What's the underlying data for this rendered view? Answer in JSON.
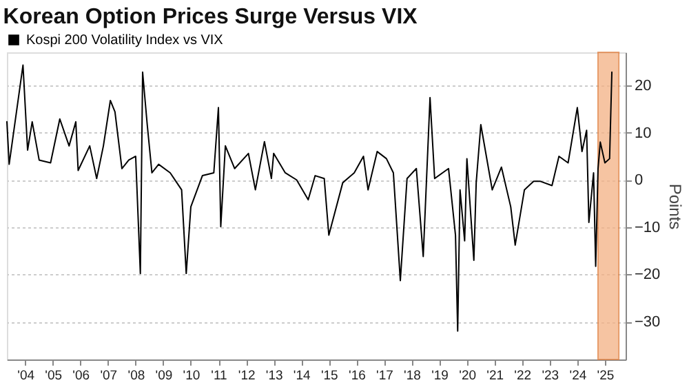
{
  "chart_data": {
    "type": "line",
    "title": "Korean Option Prices Surge Versus VIX",
    "ylabel": "Points",
    "legend": "top left",
    "grid": "y",
    "x": [
      "2003-11",
      "2003-12",
      "2004-06",
      "2004-08",
      "2004-10",
      "2005-01",
      "2005-06",
      "2005-10",
      "2006-02",
      "2006-05",
      "2006-06",
      "2006-11",
      "2007-02",
      "2007-05",
      "2007-08",
      "2007-10",
      "2008-01",
      "2008-04",
      "2008-07",
      "2008-09",
      "2008-10",
      "2008-12",
      "2009-02",
      "2009-05",
      "2009-10",
      "2010-03",
      "2010-05",
      "2010-07",
      "2010-12",
      "2011-05",
      "2011-07",
      "2011-08",
      "2011-10",
      "2012-02",
      "2012-08",
      "2012-11",
      "2013-03",
      "2013-06",
      "2013-07",
      "2013-12",
      "2014-05",
      "2014-10",
      "2015-01",
      "2015-05",
      "2015-07",
      "2016-01",
      "2016-06",
      "2016-10",
      "2016-12",
      "2017-04",
      "2017-08",
      "2017-11",
      "2018-02",
      "2018-05",
      "2018-09",
      "2018-12",
      "2019-03",
      "2019-05",
      "2019-11",
      "2020-02",
      "2020-03",
      "2020-04",
      "2020-06",
      "2020-07",
      "2020-10",
      "2020-11",
      "2021-01",
      "2021-03",
      "2021-06",
      "2021-10",
      "2022-02",
      "2022-04",
      "2022-08",
      "2022-12",
      "2023-03",
      "2023-08",
      "2023-11",
      "2024-03",
      "2024-07",
      "2024-09",
      "2024-11",
      "2024-12",
      "2025-02",
      "2025-03",
      "2025-04",
      "2025-05",
      "2025-07",
      "2025-09",
      "2025-10"
    ],
    "series": [
      {
        "name": "Kospi 200 Volatility Index vs VIX",
        "color": "#000000",
        "values": [
          12.3,
          3.3,
          24.3,
          6.3,
          12.3,
          4.2,
          3.6,
          12.9,
          7.2,
          12.3,
          2,
          7.2,
          0.3,
          7.2,
          16.8,
          14.4,
          2.4,
          4.2,
          5,
          -19.8,
          22.8,
          11.7,
          1.5,
          3.3,
          1.5,
          -2.1,
          -19.8,
          -5.7,
          0.9,
          1.5,
          15.3,
          -9.9,
          7.2,
          2.4,
          5.6,
          -2.1,
          8.1,
          0.3,
          5.6,
          1.5,
          0,
          -4.2,
          0.9,
          0.3,
          -11.7,
          -0.6,
          1.5,
          5,
          -2.1,
          6,
          4.5,
          1.5,
          -21.3,
          0.3,
          2.4,
          -16.2,
          17.4,
          0.3,
          2.4,
          -11.7,
          -32,
          -2.1,
          -12.9,
          4.5,
          -17,
          -0.6,
          11.7,
          6.3,
          -2.1,
          2.7,
          -5.7,
          -13.8,
          -2.1,
          -0.3,
          -0.3,
          -1.2,
          5,
          3.6,
          15.3,
          6,
          10.5,
          -9,
          1.5,
          -18.3,
          2.4,
          8,
          3.6,
          4.5,
          22.8
        ]
      }
    ],
    "xlim": [
      "2003-11",
      "2026-04"
    ],
    "xticks": [
      {
        "value": "2004-07",
        "label": "'04"
      },
      {
        "value": "2005-07",
        "label": "'05"
      },
      {
        "value": "2006-07",
        "label": "'06"
      },
      {
        "value": "2007-07",
        "label": "'07"
      },
      {
        "value": "2008-07",
        "label": "'08"
      },
      {
        "value": "2009-07",
        "label": "'09"
      },
      {
        "value": "2010-07",
        "label": "'10"
      },
      {
        "value": "2011-07",
        "label": "'11"
      },
      {
        "value": "2012-07",
        "label": "'12"
      },
      {
        "value": "2013-07",
        "label": "'13"
      },
      {
        "value": "2014-07",
        "label": "'14"
      },
      {
        "value": "2015-07",
        "label": "'15"
      },
      {
        "value": "2016-07",
        "label": "'16"
      },
      {
        "value": "2017-07",
        "label": "'17"
      },
      {
        "value": "2018-07",
        "label": "'18"
      },
      {
        "value": "2019-07",
        "label": "'19"
      },
      {
        "value": "2020-07",
        "label": "'20"
      },
      {
        "value": "2021-07",
        "label": "'21"
      },
      {
        "value": "2022-07",
        "label": "'22"
      },
      {
        "value": "2023-07",
        "label": "'23"
      },
      {
        "value": "2024-07",
        "label": "'24"
      },
      {
        "value": "2025-07",
        "label": "'25"
      }
    ],
    "ylim": [
      -38,
      27
    ],
    "yticks": [
      -30,
      -20,
      -10,
      0,
      10,
      20
    ],
    "bands": [
      {
        "axis": "x",
        "from": "2025-04",
        "to": "2026-01",
        "color": "#f4b183"
      }
    ]
  }
}
